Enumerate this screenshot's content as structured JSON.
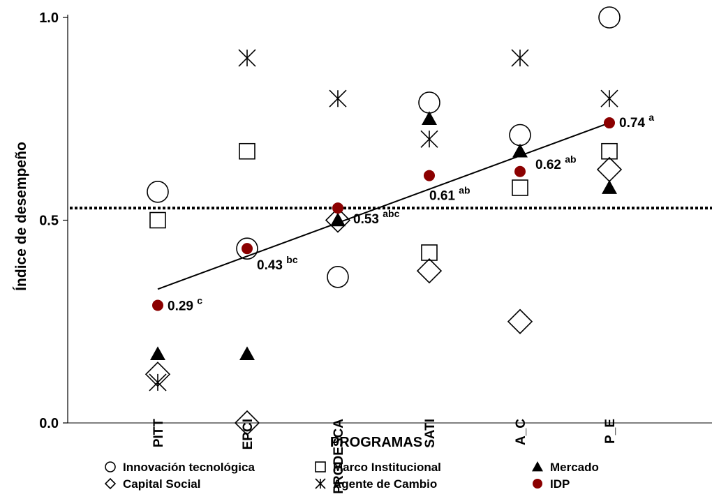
{
  "chart_data": {
    "type": "scatter",
    "title": "",
    "xlabel": "PROGRAMAS",
    "ylabel": "Índice de desempeño",
    "categories": [
      "PITT",
      "EPCI",
      "PRODESCA",
      "SATI",
      "A_C",
      "P_E"
    ],
    "ylim": [
      0,
      1
    ],
    "yticks": [
      {
        "value": 0.0,
        "label": "0.0"
      },
      {
        "value": 0.5,
        "label": "0.5"
      },
      {
        "value": 1.0,
        "label": "1.0"
      }
    ],
    "grid": false,
    "reference_line_y": 0.53,
    "series": [
      {
        "name": "Innovación tecnológica",
        "marker": "circle-open",
        "color": "#000000",
        "values": [
          0.57,
          0.43,
          0.36,
          0.79,
          0.71,
          1.0
        ]
      },
      {
        "name": "Marco Institucional",
        "marker": "square-open",
        "color": "#000000",
        "values": [
          0.5,
          0.67,
          null,
          0.42,
          0.58,
          0.67
        ]
      },
      {
        "name": "Mercado",
        "marker": "triangle-filled",
        "color": "#000000",
        "values": [
          0.17,
          0.17,
          0.5,
          0.75,
          0.67,
          0.58
        ]
      },
      {
        "name": "Capital Social",
        "marker": "diamond-open",
        "color": "#000000",
        "values": [
          0.12,
          0.0,
          0.5,
          0.375,
          0.25,
          0.625
        ]
      },
      {
        "name": "Agente de Cambio",
        "marker": "asterisk",
        "color": "#000000",
        "values": [
          0.1,
          0.9,
          0.8,
          0.7,
          0.9,
          0.8
        ]
      },
      {
        "name": "IDP",
        "marker": "circle-filled",
        "color": "#8b0000",
        "values": [
          0.29,
          0.43,
          0.53,
          0.61,
          0.62,
          0.74
        ]
      }
    ],
    "data_labels": [
      {
        "value": "0.29",
        "sup": "c"
      },
      {
        "value": "0.43",
        "sup": "bc"
      },
      {
        "value": "0.53",
        "sup": "abc"
      },
      {
        "value": "0.61",
        "sup": "ab"
      },
      {
        "value": "0.62",
        "sup": "ab"
      },
      {
        "value": "0.74",
        "sup": "a"
      }
    ],
    "trend_line": {
      "y_start": 0.33,
      "y_end": 0.74
    },
    "legend_position": "bottom"
  }
}
